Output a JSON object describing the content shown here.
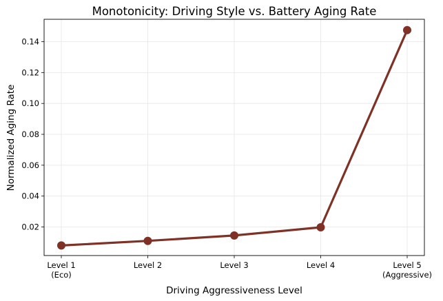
{
  "chart_data": {
    "type": "line",
    "title": "Monotonicity: Driving Style vs. Battery Aging Rate",
    "xlabel": "Driving Aggressiveness Level",
    "ylabel": "Normalized Aging Rate",
    "categories": [
      [
        "Level 1",
        "(Eco)"
      ],
      [
        "Level 2"
      ],
      [
        "Level 3"
      ],
      [
        "Level 4"
      ],
      [
        "Level 5",
        "(Aggressive)"
      ]
    ],
    "yticks": [
      "0.02",
      "0.04",
      "0.06",
      "0.08",
      "0.10",
      "0.12",
      "0.14"
    ],
    "ylim": [
      0.0015,
      0.1545
    ],
    "grid": true,
    "series": [
      {
        "values": [
          0.008,
          0.011,
          0.0145,
          0.0198,
          0.1475
        ],
        "color": "#7f3126"
      }
    ]
  }
}
